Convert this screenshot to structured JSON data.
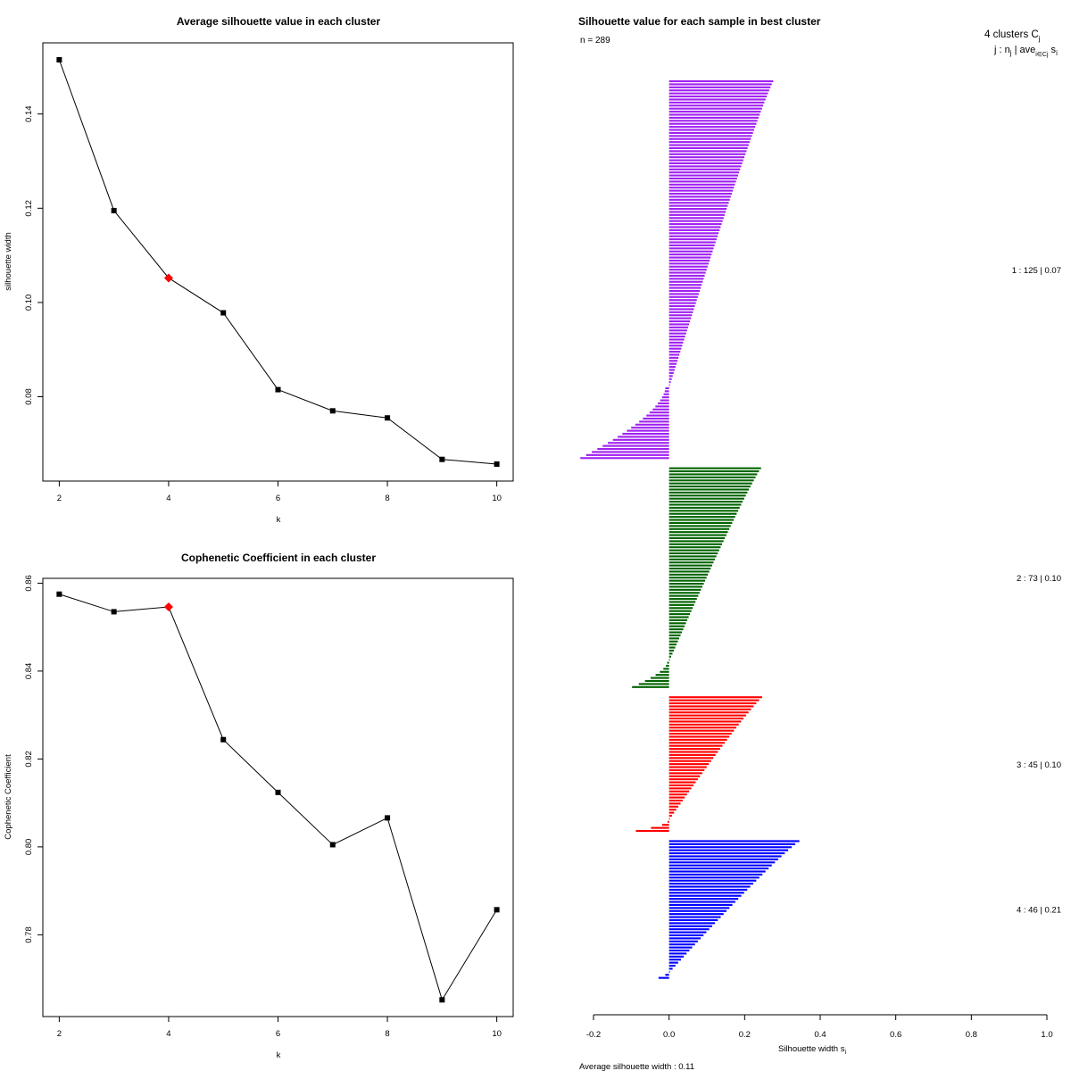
{
  "chart_data": [
    {
      "type": "line",
      "title": "Average silhouette value in each cluster",
      "xlabel": "k",
      "ylabel": "silhouette width",
      "x": [
        2,
        3,
        4,
        5,
        6,
        7,
        8,
        9,
        10
      ],
      "values": [
        0.1515,
        0.1195,
        0.1052,
        0.0978,
        0.0815,
        0.077,
        0.0755,
        0.0667,
        0.0657
      ],
      "highlight_k": 4,
      "highlight_color": "#ff0000",
      "xticks": [
        2,
        4,
        6,
        8,
        10
      ],
      "yticks": [
        0.08,
        0.1,
        0.12,
        0.14
      ],
      "ytick_labels": [
        "0.08",
        "0.10",
        "0.12",
        "0.14"
      ],
      "xlim": [
        1.7,
        10.3
      ],
      "ylim": [
        0.0621,
        0.1551
      ]
    },
    {
      "type": "line",
      "title": "Cophenetic Coefficient in each cluster",
      "xlabel": "k",
      "ylabel": "Cophenetic Coefficient",
      "x": [
        2,
        3,
        4,
        5,
        6,
        7,
        8,
        9,
        10
      ],
      "values": [
        0.8575,
        0.8535,
        0.8546,
        0.8244,
        0.8124,
        0.8005,
        0.8066,
        0.7652,
        0.7857
      ],
      "highlight_k": 4,
      "highlight_color": "#ff0000",
      "xticks": [
        2,
        4,
        6,
        8,
        10
      ],
      "yticks": [
        0.78,
        0.8,
        0.82,
        0.84,
        0.86
      ],
      "ytick_labels": [
        "0.78",
        "0.80",
        "0.82",
        "0.84",
        "0.86"
      ],
      "xlim": [
        1.7,
        10.3
      ],
      "ylim": [
        0.7614,
        0.8611
      ]
    },
    {
      "type": "bar",
      "orientation": "horizontal",
      "title": "Silhouette value for each sample in best cluster",
      "n_label": "n = 289",
      "xlabel": "Silhouette width s",
      "xlabel_sub": "i",
      "xticks": [
        -0.2,
        0.0,
        0.2,
        0.4,
        0.6,
        0.8,
        1.0
      ],
      "xtick_labels": [
        "-0.2",
        "0.0",
        "0.2",
        "0.4",
        "0.6",
        "0.8",
        "1.0"
      ],
      "xlim": [
        -0.2,
        1.0
      ],
      "header_line1": "4  clusters  C",
      "header_line1_sub": "j",
      "header_line2": "j :  n",
      "header_line2_sub": "j",
      "header_line2_rest": " | ave",
      "header_line2_sub2": "i∈Cj",
      "header_line2_end": " s",
      "header_line2_sub3": "i",
      "footer": "Average silhouette width :  0.11",
      "clusters": [
        {
          "label": "1 :   125  |  0.07",
          "n": 125,
          "color": "#a020f0",
          "max": 0.278,
          "min": -0.235,
          "neg": 24,
          "neg_start": -0.01
        },
        {
          "label": "2 :   73  |  0.10",
          "n": 73,
          "color": "#006400",
          "max": 0.245,
          "min": -0.098,
          "neg": 9,
          "neg_start": -0.005
        },
        {
          "label": "3 :   45  |  0.10",
          "n": 45,
          "color": "#ff0000",
          "max": 0.248,
          "min": -0.088,
          "neg": 4,
          "neg_start": -0.004
        },
        {
          "label": "4 :   46  |  0.21",
          "n": 46,
          "color": "#0000ff",
          "max": 0.348,
          "min": -0.028,
          "neg": 2,
          "neg_start": -0.01
        }
      ]
    }
  ]
}
